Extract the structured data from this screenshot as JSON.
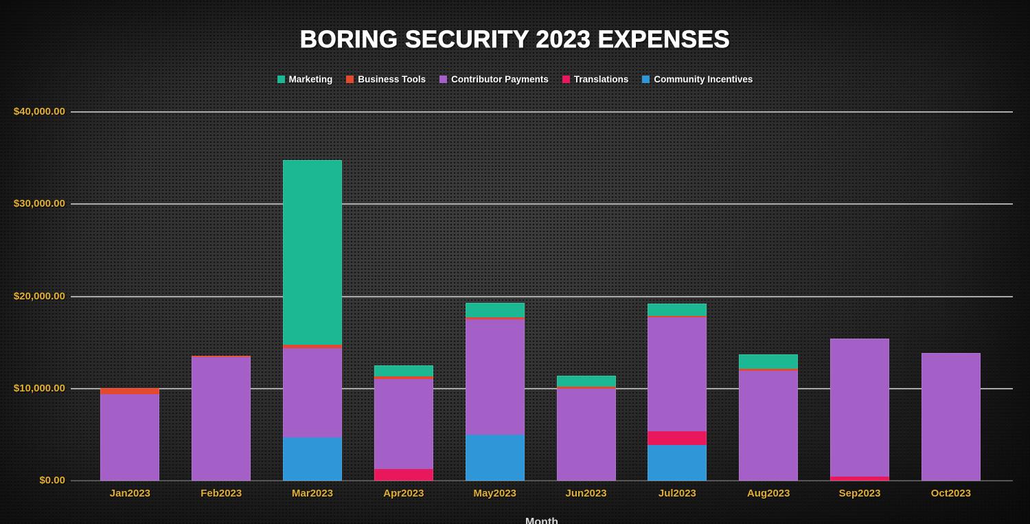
{
  "chart_data": {
    "type": "bar",
    "stacked": true,
    "title": "BORING SECURITY 2023 EXPENSES",
    "xlabel": "Month",
    "ylabel": "",
    "categories": [
      "Jan2023",
      "Feb2023",
      "Mar2023",
      "Apr2023",
      "May2023",
      "Jun2023",
      "Jul2023",
      "Aug2023",
      "Sep2023",
      "Oct2023"
    ],
    "series": [
      {
        "name": "Marketing",
        "color": "#1cb894",
        "values": [
          0,
          0,
          20000,
          1200,
          1550,
          1250,
          1350,
          1550,
          0,
          0
        ]
      },
      {
        "name": "Business Tools",
        "color": "#e2492f",
        "values": [
          660,
          150,
          350,
          300,
          225,
          225,
          150,
          225,
          0,
          0
        ]
      },
      {
        "name": "Contributor Payments",
        "color": "#a560c8",
        "values": [
          9400,
          13400,
          9700,
          9750,
          12500,
          9950,
          12300,
          11950,
          14950,
          13850
        ]
      },
      {
        "name": "Translations",
        "color": "#e9185c",
        "values": [
          0,
          0,
          0,
          1250,
          0,
          0,
          1500,
          0,
          450,
          0
        ]
      },
      {
        "name": "Community Incentives",
        "color": "#2f97d8",
        "values": [
          0,
          0,
          4700,
          0,
          5000,
          0,
          3900,
          0,
          0,
          0
        ]
      }
    ],
    "stack_order_bottom_to_top": [
      "Community Incentives",
      "Translations",
      "Contributor Payments",
      "Business Tools",
      "Marketing"
    ],
    "yticks": [
      {
        "label": "$40,000.00",
        "value": 40000
      },
      {
        "label": "$30,000.00",
        "value": 30000
      },
      {
        "label": "$20,000.00",
        "value": 20000
      },
      {
        "label": "$10,000.00",
        "value": 10000
      },
      {
        "label": "$0.00",
        "value": 0
      }
    ],
    "ylim": [
      0,
      40000
    ],
    "legend_position": "top",
    "grid": "horizontal"
  },
  "style": {
    "background_base": "#272727",
    "title_color": "#ffffff",
    "axis_label_color": "#e3b031",
    "legend_text_color": "#ffffff",
    "gridline_color": "#ababab",
    "baseline_color": "#555555",
    "xaxis_title_color": "#d9d9d9"
  }
}
